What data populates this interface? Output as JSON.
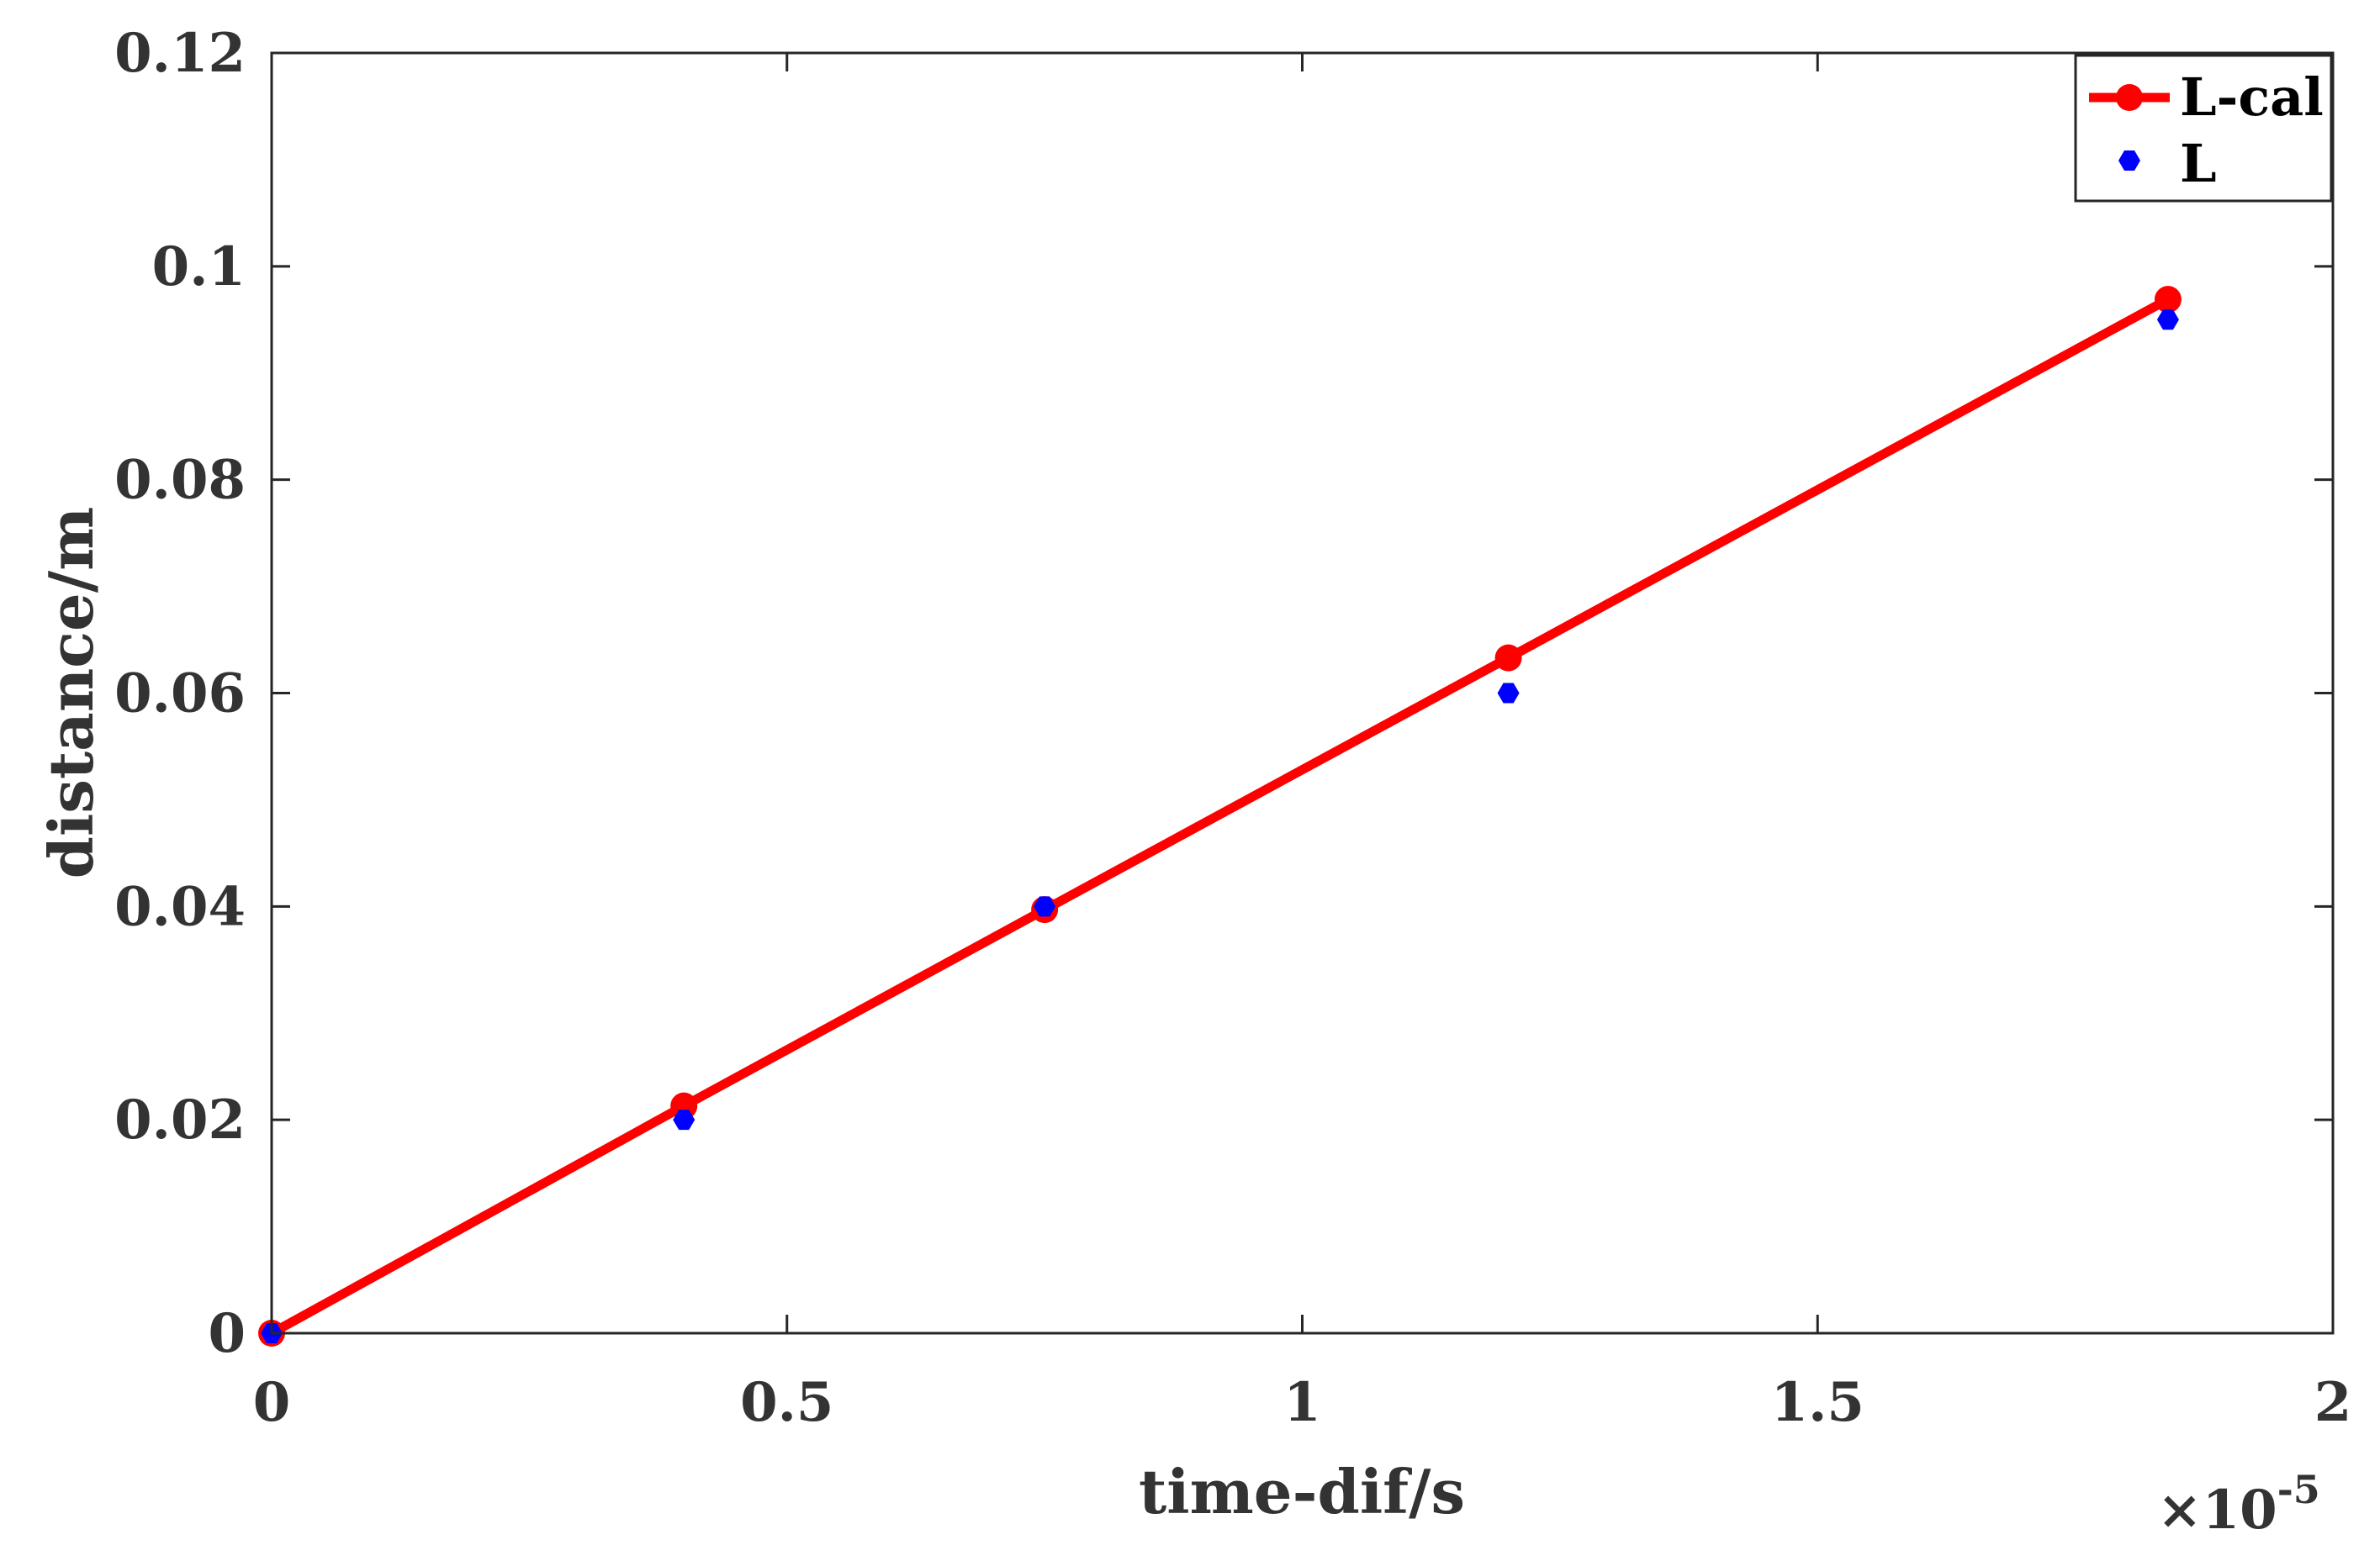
{
  "chart_data": {
    "type": "line",
    "title": "",
    "xlabel": "time-dif/s",
    "ylabel": "distance/m",
    "x_multiplier_base": "×10",
    "x_multiplier_exp": "-5",
    "xlim": [
      0,
      2
    ],
    "ylim": [
      0,
      0.12
    ],
    "xticks": [
      0,
      0.5,
      1,
      1.5,
      2
    ],
    "xtick_labels": [
      "0",
      "0.5",
      "1",
      "1.5",
      "2"
    ],
    "yticks": [
      0,
      0.02,
      0.04,
      0.06,
      0.08,
      0.1,
      0.12
    ],
    "ytick_labels": [
      "0",
      "0.02",
      "0.04",
      "0.06",
      "0.08",
      "0.1",
      "0.12"
    ],
    "grid": false,
    "legend_position": "top-right",
    "series": [
      {
        "name": "L-cal",
        "style": "line-with-markers",
        "color": "#ff0000",
        "x": [
          0,
          0.4,
          0.75,
          1.2,
          1.84
        ],
        "y": [
          0,
          0.0213,
          0.0397,
          0.0633,
          0.0969
        ]
      },
      {
        "name": "L",
        "style": "markers",
        "color": "#0000ff",
        "x": [
          0,
          0.4,
          0.75,
          1.2,
          1.84
        ],
        "y": [
          0,
          0.02,
          0.04,
          0.06,
          0.095
        ]
      }
    ]
  }
}
